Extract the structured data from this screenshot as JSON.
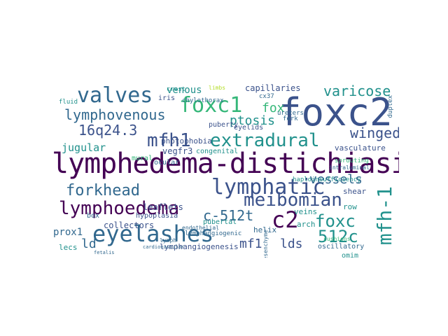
{
  "palette": {
    "deep_purple": "#440154",
    "indigo": "#3b528b",
    "blue": "#31688e",
    "teal": "#21918c",
    "green": "#35b779",
    "lime": "#6ece58",
    "yellow": "#b5de2b"
  },
  "words": {
    "foxc2": "foxc2",
    "lymphedema_distichiasis": "lymphedema-distichiasis",
    "valves": "valves",
    "foxc1": "foxc1",
    "eyelashes": "eyelashes",
    "lymphatic": "lymphatic",
    "extradural": "extradural",
    "lymphoedema": "lymphoedema",
    "meibomian": "meibomian",
    "mfh1": "mfh1",
    "c2": "c2",
    "foxc": "foxc",
    "mfh_1": "mfh-1",
    "forkhead": "forkhead",
    "lymphovenous": "lymphovenous",
    "varicose": "varicose",
    "c_512t": "c-512t",
    "q16_24_3": "16q24.3",
    "ptosis": "ptosis",
    "winged": "winged",
    "vessels": "vessels",
    "c512": "512c",
    "mf1": "mf1",
    "lds": "lds",
    "ld": "ld",
    "fox": "fox",
    "jugular": "jugular",
    "venous": "venous",
    "capillaries": "capillaries",
    "prox1": "prox1",
    "collectors": "collectors",
    "leaflets": "leaflets",
    "vegfr3": "vegfr3",
    "photophobia": "photophobia",
    "lymphangiogenesis": "lymphangiogenesis",
    "helix": "helix",
    "lecs": "lecs",
    "shear": "shear",
    "veins": "veins",
    "arch": "arch",
    "row": "row",
    "iris": "iris",
    "eyelids": "eyelids",
    "puberty": "puberty",
    "vasculature": "vasculature",
    "hypoplasia": "hypoplasia",
    "pubertal": "pubertal",
    "congenital": "congenital",
    "ocular": "ocular",
    "mural": "mural",
    "box": "box",
    "lymphangiogenic": "lymphangiogenic",
    "oscillatory": "oscillatory",
    "omim": "omim",
    "mechanotransduction": "mechanotransduction",
    "haploinsufficiency": "haploinsufficiency",
    "crest": "crest",
    "chylothorax": "chylothorax",
    "fluid": "fluid",
    "cx37": "cx37",
    "sprouting": "sprouting",
    "intraluminal": "intraluminal",
    "duplex": "duplex",
    "ureters": "ureters",
    "fork": "fork",
    "mesenchyme": "mesenchyme",
    "endothelial": "endothelial",
    "lymph": "lymph",
    "limbs": "limbs",
    "cardiovascular": "cardiovascular",
    "fetalis": "fetalis",
    "cushions": "cushions"
  }
}
